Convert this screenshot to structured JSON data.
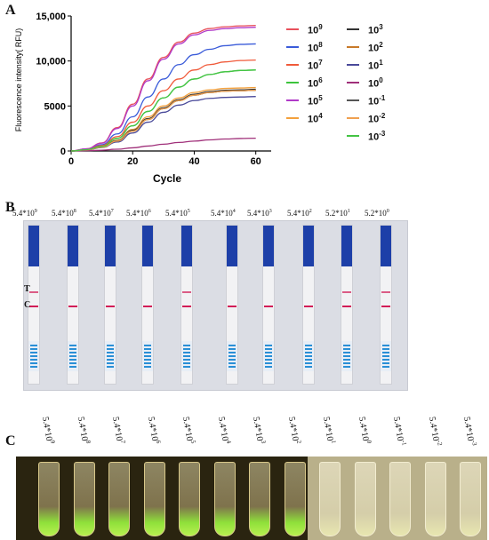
{
  "panels": {
    "a": "A",
    "b": "B",
    "c": "C"
  },
  "chart_data": {
    "type": "line",
    "xlabel": "Cycle",
    "ylabel": "Fluorescence intensity( RFU)",
    "xlim": [
      0,
      65
    ],
    "ylim": [
      0,
      15000
    ],
    "xticks": [
      0,
      20,
      40,
      60
    ],
    "yticks": [
      0,
      5000,
      10000,
      15000
    ],
    "ytick_labels": [
      "0",
      "5000",
      "10,000",
      "15,000"
    ],
    "x": [
      0,
      5,
      10,
      15,
      20,
      25,
      30,
      35,
      40,
      45,
      50,
      55,
      60
    ],
    "series": [
      {
        "name": "10^9",
        "color": "#e8505b",
        "values": [
          0,
          250,
          900,
          2600,
          5200,
          8000,
          10400,
          12100,
          13100,
          13600,
          13800,
          13900,
          13950
        ]
      },
      {
        "name": "10^8",
        "color": "#3a5bd9",
        "values": [
          0,
          200,
          700,
          1900,
          3800,
          6000,
          8000,
          9600,
          10700,
          11300,
          11700,
          11850,
          11900
        ]
      },
      {
        "name": "10^7",
        "color": "#f05a3a",
        "values": [
          0,
          180,
          600,
          1600,
          3200,
          5000,
          6700,
          8000,
          9000,
          9600,
          9900,
          10050,
          10100
        ]
      },
      {
        "name": "10^6",
        "color": "#3cc43c",
        "values": [
          0,
          150,
          500,
          1400,
          2800,
          4400,
          5900,
          7100,
          8000,
          8500,
          8800,
          8950,
          9000
        ]
      },
      {
        "name": "10^5",
        "color": "#b03ac8",
        "values": [
          0,
          240,
          860,
          2500,
          5000,
          7800,
          10200,
          11900,
          12900,
          13400,
          13600,
          13700,
          13750
        ]
      },
      {
        "name": "10^4",
        "color": "#f3a03c",
        "values": [
          0,
          130,
          450,
          1200,
          2400,
          3800,
          5000,
          5900,
          6500,
          6800,
          6950,
          7000,
          7050
        ]
      },
      {
        "name": "10^3",
        "color": "#333333",
        "values": [
          0,
          125,
          430,
          1150,
          2300,
          3600,
          4800,
          5700,
          6300,
          6600,
          6750,
          6800,
          6850
        ]
      },
      {
        "name": "10^2",
        "color": "#c87a2a",
        "values": [
          0,
          120,
          420,
          1100,
          2200,
          3500,
          4700,
          5600,
          6200,
          6500,
          6650,
          6700,
          6750
        ]
      },
      {
        "name": "10^1",
        "color": "#4a4a9a",
        "values": [
          0,
          110,
          380,
          1000,
          2000,
          3200,
          4300,
          5100,
          5600,
          5850,
          5950,
          6000,
          6050
        ]
      },
      {
        "name": "10^0",
        "color": "#a0307a",
        "values": [
          0,
          40,
          90,
          200,
          350,
          550,
          750,
          950,
          1100,
          1230,
          1330,
          1390,
          1420
        ]
      },
      {
        "name": "10^-1",
        "color": "#555555",
        "values": [
          0,
          120,
          420,
          1100,
          2200,
          3500,
          4700,
          5600,
          6200,
          6500,
          6650,
          6700,
          6750
        ]
      },
      {
        "name": "10^-2",
        "color": "#f0a050",
        "values": [
          0,
          120,
          420,
          1100,
          2200,
          3500,
          4700,
          5600,
          6200,
          6500,
          6650,
          6700,
          6750
        ]
      },
      {
        "name": "10^-3",
        "color": "#44c444",
        "values": [
          0,
          150,
          500,
          1400,
          2800,
          4400,
          5900,
          7100,
          8000,
          8500,
          8800,
          8950,
          9000
        ]
      }
    ],
    "legend": [
      {
        "base": "10",
        "exp": "9",
        "color": "#e8505b"
      },
      {
        "base": "10",
        "exp": "8",
        "color": "#3a5bd9"
      },
      {
        "base": "10",
        "exp": "7",
        "color": "#f05a3a"
      },
      {
        "base": "10",
        "exp": "6",
        "color": "#3cc43c"
      },
      {
        "base": "10",
        "exp": "5",
        "color": "#b03ac8"
      },
      {
        "base": "10",
        "exp": "4",
        "color": "#f3a03c"
      },
      {
        "base": "10",
        "exp": "3",
        "color": "#333333"
      },
      {
        "base": "10",
        "exp": "2",
        "color": "#c87a2a"
      },
      {
        "base": "10",
        "exp": "1",
        "color": "#4a4a9a"
      },
      {
        "base": "10",
        "exp": "0",
        "color": "#a0307a"
      },
      {
        "base": "10",
        "exp": "-1",
        "color": "#555555"
      },
      {
        "base": "10",
        "exp": "-2",
        "color": "#f0a050"
      },
      {
        "base": "10",
        "exp": "-3",
        "color": "#44c444"
      }
    ],
    "legend_position": "right"
  },
  "strips": {
    "labels": [
      {
        "base": "5.4*10",
        "exp": "9"
      },
      {
        "base": "5.4*10",
        "exp": "8"
      },
      {
        "base": "5.4*10",
        "exp": "7"
      },
      {
        "base": "5.4*10",
        "exp": "6"
      },
      {
        "base": "5.4*10",
        "exp": "5"
      },
      {
        "base": "5.4*10",
        "exp": "4"
      },
      {
        "base": "5.4*10",
        "exp": "3"
      },
      {
        "base": "5.4*10",
        "exp": "2"
      },
      {
        "base": "5.2*10",
        "exp": "1"
      },
      {
        "base": "5.2*10",
        "exp": "0"
      }
    ],
    "t_label": "T",
    "c_label": "C"
  },
  "tubes": {
    "labels": [
      {
        "base": "5.4*10",
        "exp": "9"
      },
      {
        "base": "5.4*10",
        "exp": "8"
      },
      {
        "base": "5.4*10",
        "exp": "7"
      },
      {
        "base": "5.4*10",
        "exp": "6"
      },
      {
        "base": "5.4*10",
        "exp": "5"
      },
      {
        "base": "5.4*10",
        "exp": "4"
      },
      {
        "base": "5.4*10",
        "exp": "3"
      },
      {
        "base": "5.4*10",
        "exp": "2"
      },
      {
        "base": "5.4*10",
        "exp": "1"
      },
      {
        "base": "5.4*10",
        "exp": "0"
      },
      {
        "base": "5.4*10",
        "exp": "-1"
      },
      {
        "base": "5.4*10",
        "exp": "-2"
      },
      {
        "base": "5.4*10",
        "exp": "-3"
      }
    ]
  }
}
